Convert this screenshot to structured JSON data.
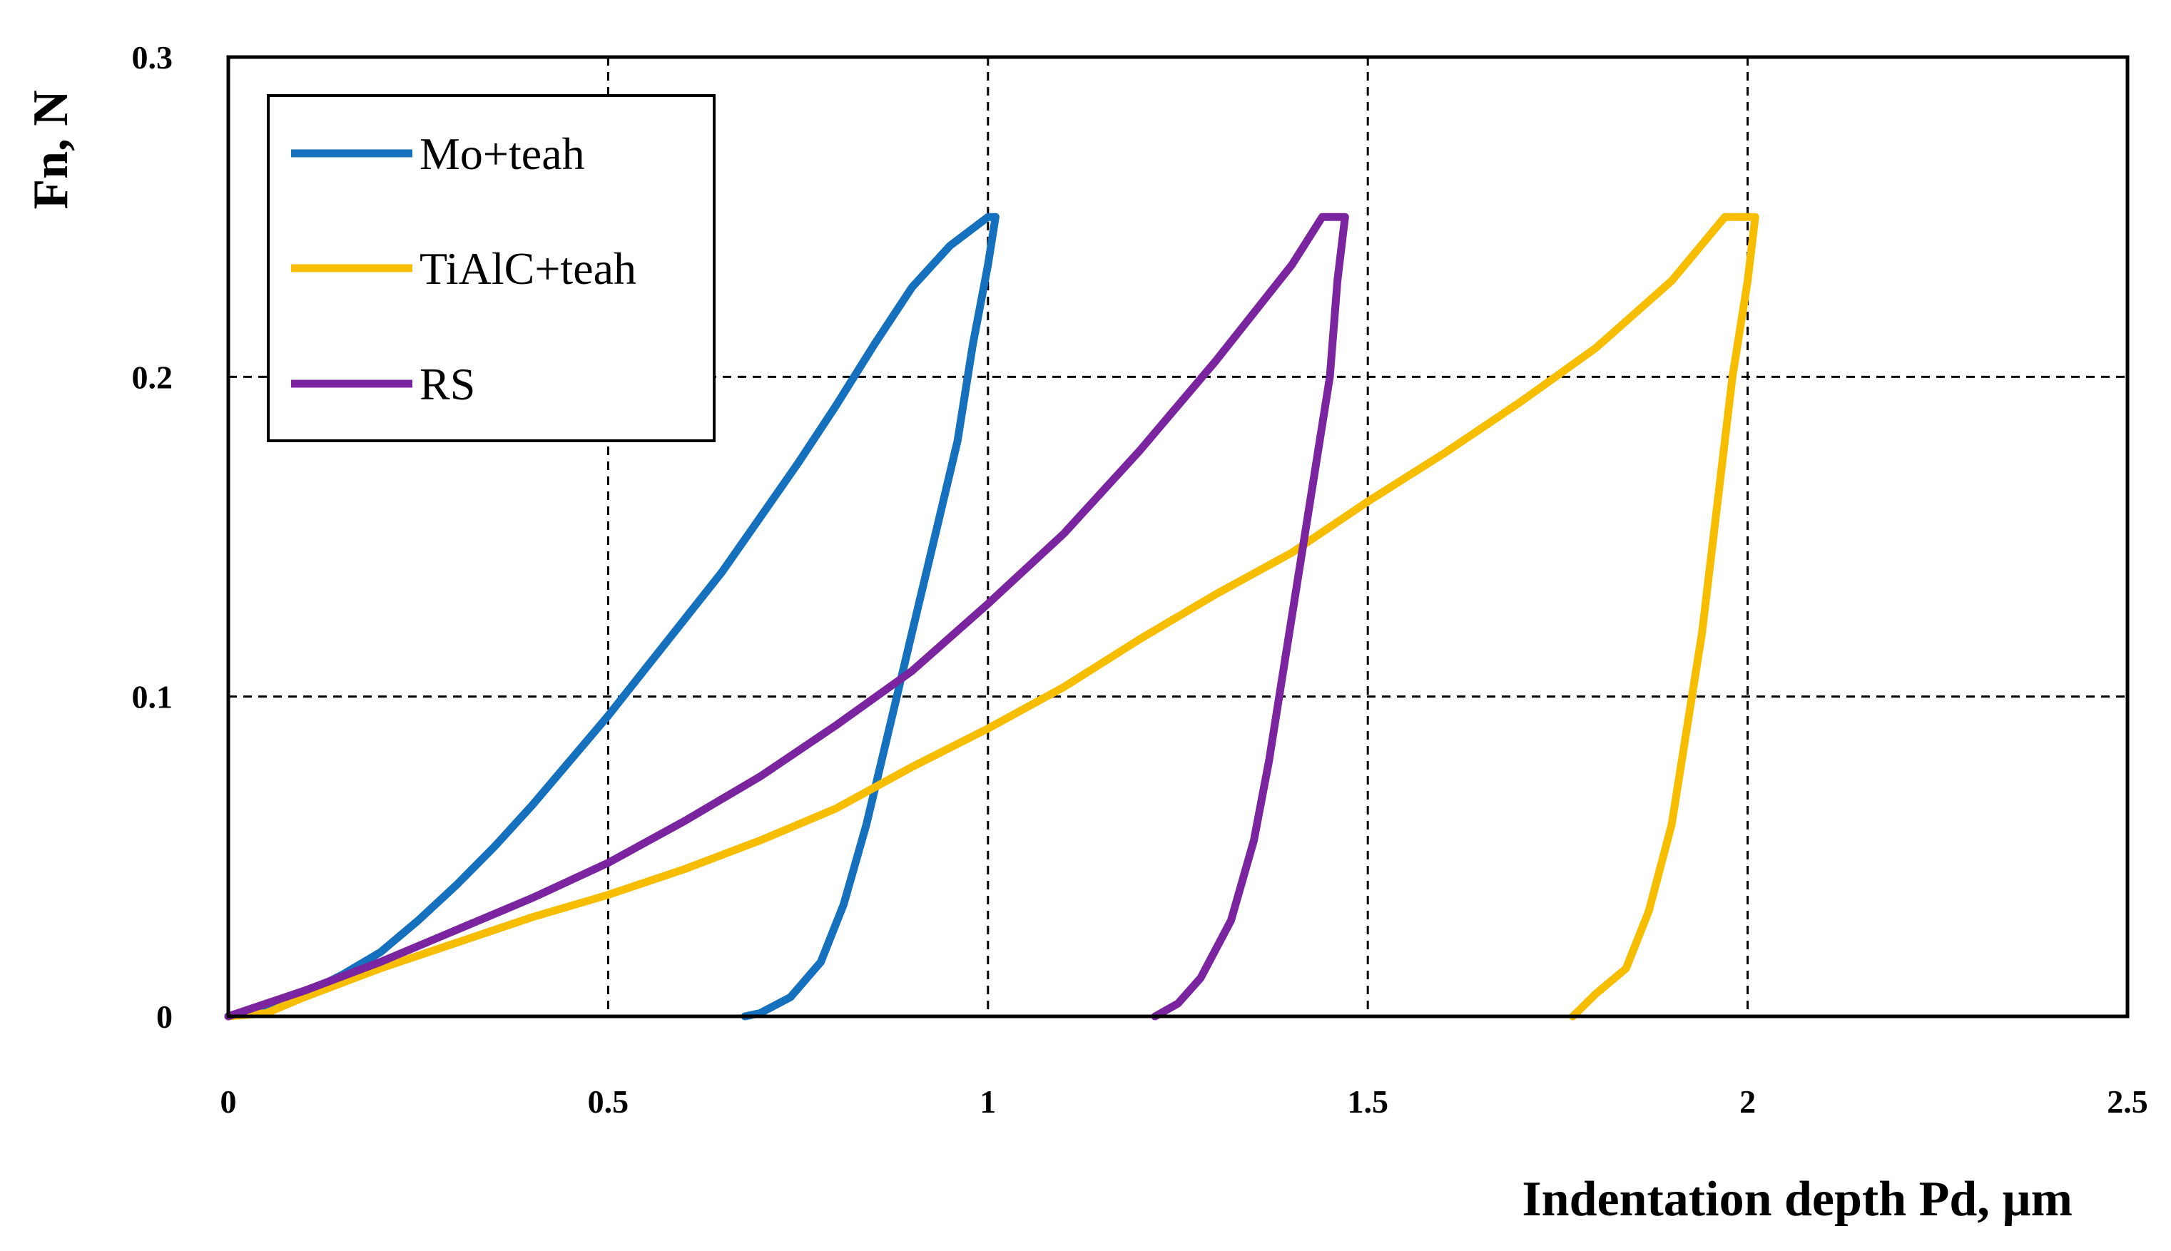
{
  "chart_data": {
    "type": "line",
    "title": "",
    "xlabel": "Indentation depth Pd, µm",
    "ylabel": "Fn, N",
    "xlim": [
      0,
      2.5
    ],
    "ylim": [
      0,
      0.3
    ],
    "x_ticks": [
      "0",
      "0.5",
      "1",
      "1.5",
      "2",
      "2.5"
    ],
    "y_ticks": [
      "0",
      "0.1",
      "0.2",
      "0.3"
    ],
    "grid": "dashed",
    "legend_position": "top-left",
    "series": [
      {
        "name": "Mo+teah",
        "color": "#1570BE",
        "points": [
          [
            0,
            0
          ],
          [
            0.05,
            0.002
          ],
          [
            0.1,
            0.007
          ],
          [
            0.15,
            0.013
          ],
          [
            0.2,
            0.02
          ],
          [
            0.25,
            0.03
          ],
          [
            0.3,
            0.041
          ],
          [
            0.35,
            0.053
          ],
          [
            0.4,
            0.066
          ],
          [
            0.45,
            0.08
          ],
          [
            0.5,
            0.094
          ],
          [
            0.55,
            0.109
          ],
          [
            0.6,
            0.124
          ],
          [
            0.65,
            0.139
          ],
          [
            0.7,
            0.156
          ],
          [
            0.75,
            0.173
          ],
          [
            0.8,
            0.191
          ],
          [
            0.85,
            0.21
          ],
          [
            0.9,
            0.228
          ],
          [
            0.95,
            0.241
          ],
          [
            1.0,
            0.25
          ],
          [
            1.01,
            0.25
          ],
          [
            1.0,
            0.235
          ],
          [
            0.98,
            0.21
          ],
          [
            0.96,
            0.18
          ],
          [
            0.93,
            0.15
          ],
          [
            0.9,
            0.12
          ],
          [
            0.87,
            0.09
          ],
          [
            0.84,
            0.06
          ],
          [
            0.81,
            0.035
          ],
          [
            0.78,
            0.017
          ],
          [
            0.74,
            0.006
          ],
          [
            0.7,
            0.001
          ],
          [
            0.68,
            0
          ]
        ]
      },
      {
        "name": "TiAlC+teah",
        "color": "#F7BE00",
        "points": [
          [
            0,
            0
          ],
          [
            0.05,
            0.001
          ],
          [
            0.1,
            0.006
          ],
          [
            0.2,
            0.015
          ],
          [
            0.3,
            0.023
          ],
          [
            0.4,
            0.031
          ],
          [
            0.5,
            0.038
          ],
          [
            0.6,
            0.046
          ],
          [
            0.7,
            0.055
          ],
          [
            0.8,
            0.065
          ],
          [
            0.9,
            0.078
          ],
          [
            1.0,
            0.09
          ],
          [
            1.1,
            0.103
          ],
          [
            1.2,
            0.118
          ],
          [
            1.3,
            0.132
          ],
          [
            1.4,
            0.145
          ],
          [
            1.5,
            0.161
          ],
          [
            1.6,
            0.176
          ],
          [
            1.7,
            0.192
          ],
          [
            1.8,
            0.209
          ],
          [
            1.9,
            0.23
          ],
          [
            1.97,
            0.25
          ],
          [
            2.01,
            0.25
          ],
          [
            2.0,
            0.23
          ],
          [
            1.98,
            0.2
          ],
          [
            1.96,
            0.16
          ],
          [
            1.94,
            0.12
          ],
          [
            1.92,
            0.09
          ],
          [
            1.9,
            0.06
          ],
          [
            1.87,
            0.033
          ],
          [
            1.84,
            0.015
          ],
          [
            1.8,
            0.007
          ],
          [
            1.77,
            0
          ]
        ]
      },
      {
        "name": "RS",
        "color": "#7B24A0",
        "points": [
          [
            0,
            0
          ],
          [
            0.1,
            0.008
          ],
          [
            0.2,
            0.017
          ],
          [
            0.3,
            0.027
          ],
          [
            0.4,
            0.037
          ],
          [
            0.5,
            0.048
          ],
          [
            0.6,
            0.061
          ],
          [
            0.7,
            0.075
          ],
          [
            0.8,
            0.091
          ],
          [
            0.9,
            0.108
          ],
          [
            1.0,
            0.129
          ],
          [
            1.1,
            0.151
          ],
          [
            1.2,
            0.177
          ],
          [
            1.3,
            0.205
          ],
          [
            1.4,
            0.235
          ],
          [
            1.44,
            0.25
          ],
          [
            1.47,
            0.25
          ],
          [
            1.46,
            0.23
          ],
          [
            1.45,
            0.2
          ],
          [
            1.43,
            0.17
          ],
          [
            1.41,
            0.14
          ],
          [
            1.39,
            0.11
          ],
          [
            1.37,
            0.08
          ],
          [
            1.35,
            0.055
          ],
          [
            1.32,
            0.03
          ],
          [
            1.28,
            0.012
          ],
          [
            1.25,
            0.004
          ],
          [
            1.22,
            0
          ]
        ]
      }
    ]
  }
}
